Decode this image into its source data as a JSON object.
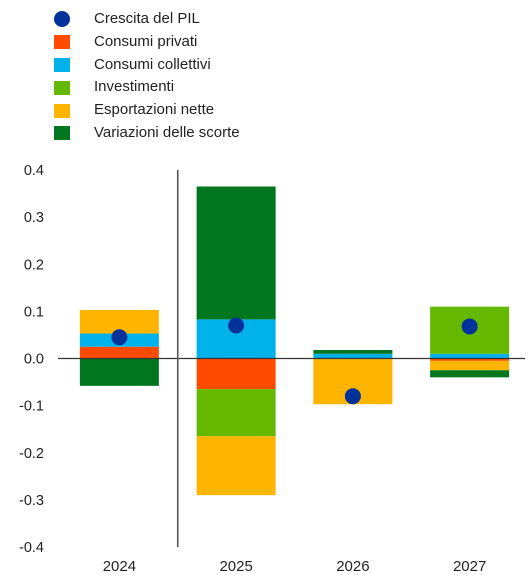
{
  "chart_data": {
    "type": "bar",
    "stacked": true,
    "categories": [
      "2024",
      "2025",
      "2026",
      "2027"
    ],
    "ylim": [
      -0.4,
      0.4
    ],
    "yticks": [
      0.4,
      0.3,
      0.2,
      0.1,
      0.0,
      -0.1,
      -0.2,
      -0.3,
      -0.4
    ],
    "ytick_labels": [
      "0.4",
      "0.3",
      "0.2",
      "0.1",
      "0.0",
      "-0.1",
      "-0.2",
      "-0.3",
      "-0.4"
    ],
    "grid": false,
    "legend_position": "top-left",
    "series": [
      {
        "name": "Consumi privati",
        "color": "#ff4b00",
        "values": [
          0.025,
          -0.065,
          0.0,
          -0.005
        ]
      },
      {
        "name": "Consumi collettivi",
        "color": "#00b1ea",
        "values": [
          0.028,
          0.083,
          0.01,
          0.01
        ]
      },
      {
        "name": "Investimenti",
        "color": "#65b800",
        "values": [
          0.0,
          -0.1,
          0.0,
          0.1
        ]
      },
      {
        "name": "Esportazioni nette",
        "color": "#ffb400",
        "values": [
          0.05,
          -0.125,
          -0.097,
          -0.02
        ]
      },
      {
        "name": "Variazioni delle scorte",
        "color": "#00771f",
        "values": [
          -0.058,
          0.282,
          0.008,
          -0.015
        ]
      }
    ],
    "gdp_series": {
      "name": "Crescita del PIL",
      "color": "#003299",
      "values": [
        0.045,
        0.07,
        -0.08,
        0.068
      ]
    }
  }
}
